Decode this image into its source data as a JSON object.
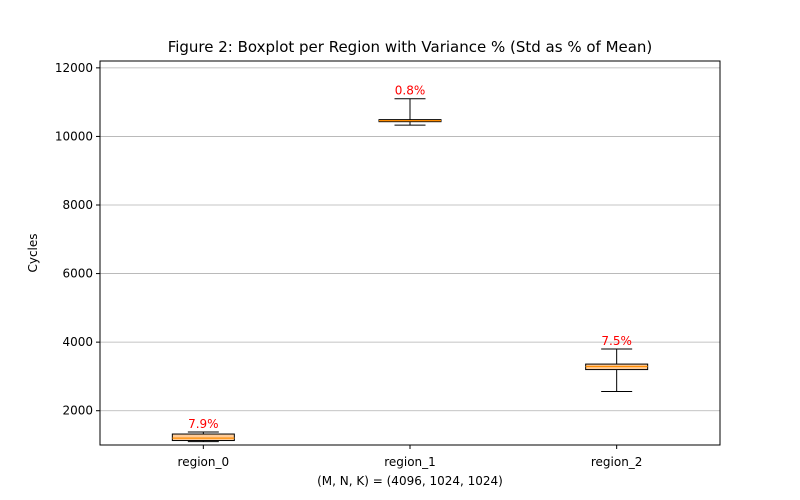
{
  "chart_data": {
    "type": "boxplot",
    "title": "Figure 2: Boxplot per Region with Variance % (Std as % of Mean)",
    "xlabel": "(M, N, K) = (4096, 1024, 1024)",
    "ylabel": "Cycles",
    "ylim": [
      1000,
      12200
    ],
    "yticks": [
      2000,
      4000,
      6000,
      8000,
      10000,
      12000
    ],
    "grid": "y",
    "categories": [
      "region_0",
      "region_1",
      "region_2"
    ],
    "boxes": [
      {
        "name": "region_0",
        "whisker_low": 1100,
        "q1": 1130,
        "median": 1200,
        "q3": 1320,
        "whisker_high": 1380,
        "annotation": "7.9%"
      },
      {
        "name": "region_1",
        "whisker_low": 10330,
        "q1": 10430,
        "median": 10460,
        "q3": 10490,
        "whisker_high": 11100,
        "annotation": "0.8%"
      },
      {
        "name": "region_2",
        "whisker_low": 2560,
        "q1": 3200,
        "median": 3290,
        "q3": 3360,
        "whisker_high": 3800,
        "annotation": "7.5%"
      }
    ],
    "colors": {
      "box_fill": "#ffcc99",
      "median": "#ff8c00",
      "annotation": "#ff0000",
      "grid": "#b0b0b0"
    }
  }
}
